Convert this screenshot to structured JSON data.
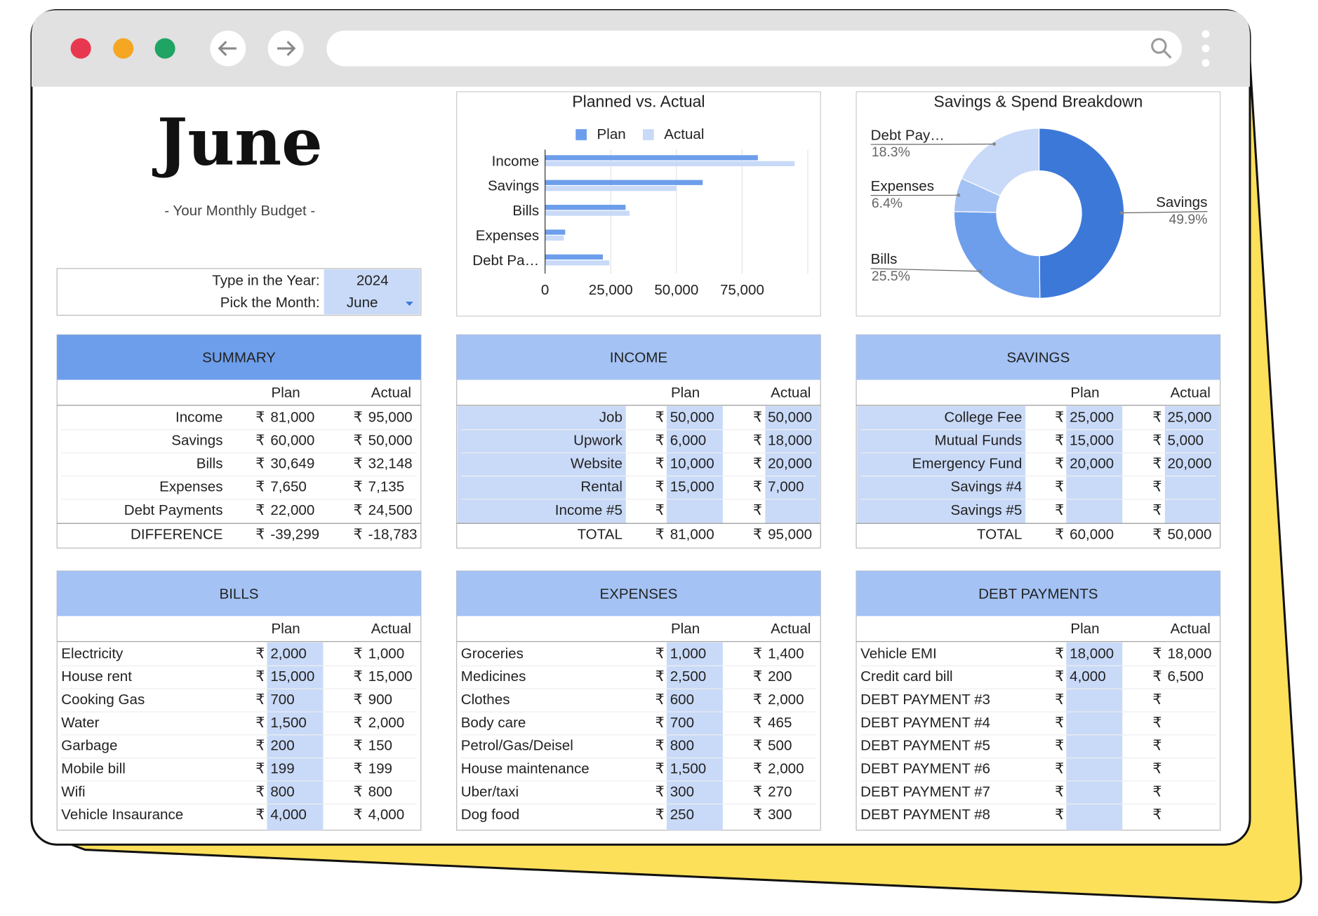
{
  "header": {
    "title": "June",
    "subtitle": "- Your Monthly Budget -"
  },
  "selector": {
    "year_label": "Type in the Year:",
    "year": "2024",
    "month_label": "Pick the Month:",
    "month": "June"
  },
  "currency": "₹",
  "chart_data": [
    {
      "type": "bar",
      "orientation": "horizontal",
      "title": "Planned vs. Actual",
      "categories": [
        "Income",
        "Savings",
        "Bills",
        "Expenses",
        "Debt Pa…"
      ],
      "series": [
        {
          "name": "Plan",
          "color": "#6d9eeb",
          "values": [
            81000,
            60000,
            30649,
            7650,
            22000
          ]
        },
        {
          "name": "Actual",
          "color": "#c9daf8",
          "values": [
            95000,
            50000,
            32148,
            7135,
            24500
          ]
        }
      ],
      "xlim": [
        0,
        100000
      ],
      "xticks": [
        0,
        {
          "value": 25000,
          "label": "25,000"
        },
        {
          "value": 50000,
          "label": "50,000"
        },
        {
          "value": 75000,
          "label": "75,000"
        }
      ],
      "legend": "top",
      "grid": true
    },
    {
      "type": "pie",
      "donut": true,
      "title": "Savings & Spend Breakdown",
      "categories": [
        "Savings",
        "Bills",
        "Expenses",
        "Debt Pay…"
      ],
      "values": [
        49.9,
        25.5,
        6.4,
        18.3
      ],
      "value_labels": [
        "49.9%",
        "25.5%",
        "6.4%",
        "18.3%"
      ],
      "colors": [
        "#3c78d8",
        "#6d9eeb",
        "#a4c2f4",
        "#c9daf8"
      ]
    }
  ],
  "tables": [
    {
      "title": "SUMMARY",
      "columns": [
        "Plan",
        "Actual"
      ],
      "rows": [
        [
          "Income",
          "81,000",
          "95,000"
        ],
        [
          "Savings",
          "60,000",
          "50,000"
        ],
        [
          "Bills",
          "30,649",
          "32,148"
        ],
        [
          "Expenses",
          "7,650",
          "7,135"
        ],
        [
          "Debt Payments",
          "22,000",
          "24,500"
        ]
      ],
      "total": [
        "DIFFERENCE",
        "-39,299",
        "-18,783"
      ]
    },
    {
      "title": "INCOME",
      "columns": [
        "Plan",
        "Actual"
      ],
      "rows": [
        [
          "Job",
          "50,000",
          "50,000"
        ],
        [
          "Upwork",
          "6,000",
          "18,000"
        ],
        [
          "Website",
          "10,000",
          "20,000"
        ],
        [
          "Rental",
          "15,000",
          "7,000"
        ],
        [
          "Income #5",
          null,
          null
        ]
      ],
      "total": [
        "TOTAL",
        "81,000",
        "95,000"
      ]
    },
    {
      "title": "SAVINGS",
      "columns": [
        "Plan",
        "Actual"
      ],
      "rows": [
        [
          "College Fee",
          "25,000",
          "25,000"
        ],
        [
          "Mutual Funds",
          "15,000",
          "5,000"
        ],
        [
          "Emergency Fund",
          "20,000",
          "20,000"
        ],
        [
          "Savings #4",
          null,
          null
        ],
        [
          "Savings #5",
          null,
          null
        ]
      ],
      "total": [
        "TOTAL",
        "60,000",
        "50,000"
      ]
    },
    {
      "title": "BILLS",
      "columns": [
        "Plan",
        "Actual"
      ],
      "rows": [
        [
          "Electricity",
          "2,000",
          "1,000"
        ],
        [
          "House rent",
          "15,000",
          "15,000"
        ],
        [
          "Cooking Gas",
          "700",
          "900"
        ],
        [
          "Water",
          "1,500",
          "2,000"
        ],
        [
          "Garbage",
          "200",
          "150"
        ],
        [
          "Mobile bill",
          "199",
          "199"
        ],
        [
          "Wifi",
          "800",
          "800"
        ],
        [
          "Vehicle Insaurance",
          "4,000",
          "4,000"
        ]
      ]
    },
    {
      "title": "EXPENSES",
      "columns": [
        "Plan",
        "Actual"
      ],
      "rows": [
        [
          "Groceries",
          "1,000",
          "1,400"
        ],
        [
          "Medicines",
          "2,500",
          "200"
        ],
        [
          "Clothes",
          "600",
          "2,000"
        ],
        [
          "Body care",
          "700",
          "465"
        ],
        [
          "Petrol/Gas/Deisel",
          "800",
          "500"
        ],
        [
          "House maintenance",
          "1,500",
          "2,000"
        ],
        [
          "Uber/taxi",
          "300",
          "270"
        ],
        [
          "Dog food",
          "250",
          "300"
        ]
      ]
    },
    {
      "title": "DEBT PAYMENTS",
      "columns": [
        "Plan",
        "Actual"
      ],
      "rows": [
        [
          "Vehicle EMI",
          "18,000",
          "18,000"
        ],
        [
          "Credit card bill",
          "4,000",
          "6,500"
        ],
        [
          "DEBT PAYMENT #3",
          null,
          null
        ],
        [
          "DEBT PAYMENT #4",
          null,
          null
        ],
        [
          "DEBT PAYMENT #5",
          null,
          null
        ],
        [
          "DEBT PAYMENT #6",
          null,
          null
        ],
        [
          "DEBT PAYMENT #7",
          null,
          null
        ],
        [
          "DEBT PAYMENT #8",
          null,
          null
        ]
      ]
    }
  ]
}
